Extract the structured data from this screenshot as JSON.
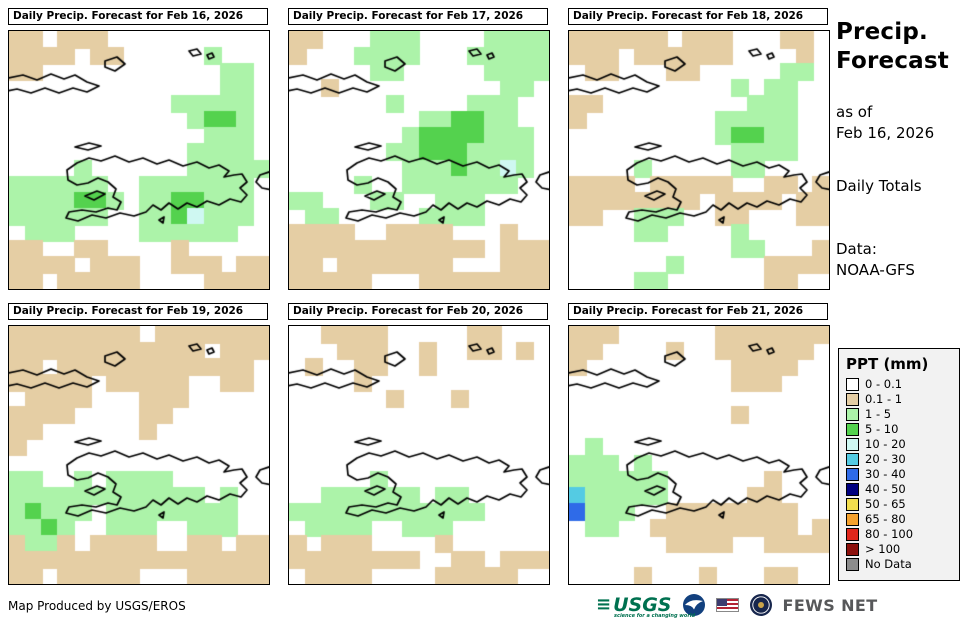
{
  "header": {
    "title_line1": "Precip.",
    "title_line2": "Forecast",
    "as_of_label": "as of",
    "as_of_date": "Feb 16, 2026",
    "totals_label": "Daily Totals",
    "data_label": "Data:",
    "data_source": "NOAA-GFS"
  },
  "palette": {
    ".": "#FFFFFF",
    "t": "#E5CEA4",
    "g": "#ACF3A9",
    "G": "#54D24E",
    "c": "#CFF8F2",
    "C": "#54CBE3",
    "b": "#2F6BE8",
    "B": "#00007F",
    "y": "#F2DE4E",
    "o": "#F5A12D",
    "r": "#E0261B",
    "R": "#8C100C",
    "n": "#8C8C8C"
  },
  "panels": [
    {
      "title": "Daily Precip. Forecast for Feb 16, 2026",
      "grid": [
        "tt.ttt..........",
        "tttt.tt.....g...",
        "tt...........gg.",
        ".............gg.",
        "..........ggggg.",
        "...........gGGg.",
        "............ggg.",
        "...........gggg.",
        "....g......ggggg",
        "gggggg..ggggggg.",
        "ggggGGg.ggGGggg.",
        "gggggg..ggGcggg.",
        ".ggg....gggggg..",
        "tt..tt....t.....",
        "tttt.ttt..ttt.tt",
        "tt.ttttt....tttt"
      ]
    },
    {
      "title": "Daily Precip. Forecast for Feb 17, 2026",
      "grid": [
        "tt...ggg....gggg",
        "t...gggg...ggggg",
        ".....gg.....gggg",
        "..t..........gg.",
        "......g....ggg..",
        "........ggGGgg..",
        ".......gGGGGggg.",
        "......ggGGGgggg.",
        ".......gggGggcg.",
        "....g..ggggggg..",
        "gg...gg..ggg....",
        ".gg.....gggg....",
        "tttt..tttt...t..",
        "tttttttttttt.ttt",
        "tt.ttttttt...ttt",
        "ttttt...tttttttt"
      ]
    },
    {
      "title": "Daily Precip. Forecast for Feb 18, 2026",
      "grid": [
        "tttttt.ttt...tt.",
        "ttt.tttttt....t.",
        ".tt...tt.....gg.",
        "..........g.gg..",
        "tt.........ggg..",
        "t........ggggg..",
        ".........gGGgg..",
        "..........gggg..",
        "....g.....gg....",
        "tttt.ttttt..tt.t",
        "tttttttt.tttt.tt",
        "tt..ggg..tt...tt",
        "....gg....g.....",
        "..........gg...t",
        "......g.....tttt",
        "....gg......tt.."
      ]
    },
    {
      "title": "Daily Precip. Forecast for Feb 19, 2026",
      "grid": [
        "tttttttt.ttttttt",
        "tttttttttttt.ttt",
        "tt.tttttttttttt.",
        "ttttt.ttttt..tt.",
        ".tttt...ttt.....",
        "tttt....tt......",
        "tt......t.......",
        "t...............",
        "................",
        "gg..g.gggg......",
        "gggggggggggg.g..",
        "gGggg.gggggggg..",
        "ggGg..ggg..ggg..",
        "tggt.tttt..tt.tt",
        "tttttttttttttttt",
        "tt.ttttt...ttttt"
      ]
    },
    {
      "title": "Daily Precip. Forecast for Feb 20, 2026",
      "grid": [
        "..tttt.....tt...",
        "...ttt..t..tt.t.",
        ".t..tt..t.......",
        "....t...........",
        "......t...t.....",
        "................",
        "................",
        "................",
        "................",
        ".....g..........",
        "..gggggg.gg.....",
        "gggggggggggg....",
        ".gggg..ggg......",
        "t.ttt....t......",
        "tttttttt..tt.ttt",
        ".tttt....ttttt.."
      ]
    },
    {
      "title": "Daily Precip. Forecast for Feb 21, 2026",
      "grid": [
        "ttt......ttttttt",
        "tt....t..tttttt.",
        "t.........tttt..",
        "..........ttt...",
        "................",
        "..........t.....",
        "................",
        ".g..............",
        "ggg.g...........",
        "gggggg......t...",
        "Cggggg.....tt...",
        "bggg..tttttttt..",
        ".gg..ttttttttt.t",
        "......tttt..tttt",
        "................",
        "....t...t...tt.."
      ]
    }
  ],
  "legend": {
    "title": "PPT (mm)",
    "entries": [
      {
        "label": "0 - 0.1",
        "color": "#FFFFFF"
      },
      {
        "label": "0.1 - 1",
        "color": "#E5CEA4"
      },
      {
        "label": "1 - 5",
        "color": "#ACF3A9"
      },
      {
        "label": "5 - 10",
        "color": "#54D24E"
      },
      {
        "label": "10 - 20",
        "color": "#CFF8F2"
      },
      {
        "label": "20 - 30",
        "color": "#54CBE3"
      },
      {
        "label": "30 - 40",
        "color": "#2F6BE8"
      },
      {
        "label": "40 - 50",
        "color": "#00007F"
      },
      {
        "label": "50 - 65",
        "color": "#F2DE4E"
      },
      {
        "label": "65 - 80",
        "color": "#F5A12D"
      },
      {
        "label": "80 - 100",
        "color": "#E0261B"
      },
      {
        "label": "> 100",
        "color": "#8C100C"
      },
      {
        "label": "No Data",
        "color": "#8C8C8C"
      }
    ]
  },
  "footer": {
    "credit": "Map Produced by USGS/EROS",
    "usgs_label": "USGS",
    "usgs_tagline": "science for a changing world",
    "fews_label": "FEWS NET"
  }
}
